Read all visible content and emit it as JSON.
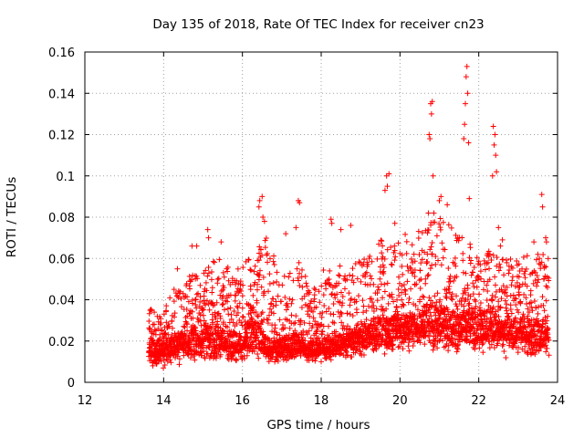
{
  "chart_data": {
    "type": "scatter",
    "title": "Day 135 of 2018, Rate Of TEC Index for receiver cn23",
    "xlabel": "GPS time / hours",
    "ylabel": "ROTI / TECUs",
    "xlim": [
      12,
      24
    ],
    "ylim": [
      0,
      0.16
    ],
    "xticks": [
      "12",
      "14",
      "16",
      "18",
      "20",
      "22",
      "24"
    ],
    "yticks": [
      "0",
      "0.02",
      "0.04",
      "0.06",
      "0.08",
      "0.1",
      "0.12",
      "0.14",
      "0.16"
    ],
    "grid": true,
    "marker": "+",
    "marker_color": "#ff0000",
    "series": [
      {
        "name": "ROTI",
        "x_range": [
          13.62,
          23.78
        ],
        "envelope": [
          [
            13.6,
            0.005,
            0.018,
            0.036
          ],
          [
            14.0,
            0.006,
            0.018,
            0.035
          ],
          [
            14.4,
            0.008,
            0.022,
            0.05
          ],
          [
            14.8,
            0.008,
            0.025,
            0.053
          ],
          [
            15.2,
            0.008,
            0.025,
            0.062
          ],
          [
            15.6,
            0.007,
            0.022,
            0.06
          ],
          [
            16.0,
            0.008,
            0.022,
            0.055
          ],
          [
            16.3,
            0.008,
            0.03,
            0.075
          ],
          [
            16.6,
            0.007,
            0.02,
            0.07
          ],
          [
            17.0,
            0.008,
            0.02,
            0.055
          ],
          [
            17.4,
            0.008,
            0.022,
            0.06
          ],
          [
            17.8,
            0.008,
            0.018,
            0.045
          ],
          [
            18.2,
            0.01,
            0.02,
            0.06
          ],
          [
            18.6,
            0.01,
            0.022,
            0.055
          ],
          [
            19.0,
            0.01,
            0.025,
            0.06
          ],
          [
            19.4,
            0.012,
            0.028,
            0.065
          ],
          [
            19.8,
            0.012,
            0.03,
            0.08
          ],
          [
            20.2,
            0.013,
            0.03,
            0.07
          ],
          [
            20.6,
            0.012,
            0.032,
            0.075
          ],
          [
            21.0,
            0.012,
            0.035,
            0.08
          ],
          [
            21.4,
            0.012,
            0.03,
            0.075
          ],
          [
            21.8,
            0.012,
            0.033,
            0.07
          ],
          [
            22.2,
            0.012,
            0.032,
            0.065
          ],
          [
            22.6,
            0.012,
            0.028,
            0.06
          ],
          [
            23.0,
            0.011,
            0.028,
            0.06
          ],
          [
            23.4,
            0.01,
            0.028,
            0.065
          ],
          [
            23.8,
            0.01,
            0.026,
            0.06
          ]
        ],
        "outliers": [
          [
            14.35,
            0.055
          ],
          [
            14.72,
            0.066
          ],
          [
            14.84,
            0.066
          ],
          [
            15.12,
            0.074
          ],
          [
            15.14,
            0.07
          ],
          [
            15.46,
            0.068
          ],
          [
            16.42,
            0.085
          ],
          [
            16.44,
            0.088
          ],
          [
            16.5,
            0.09
          ],
          [
            16.52,
            0.08
          ],
          [
            16.56,
            0.078
          ],
          [
            17.1,
            0.072
          ],
          [
            17.36,
            0.075
          ],
          [
            17.42,
            0.088
          ],
          [
            17.45,
            0.087
          ],
          [
            18.25,
            0.079
          ],
          [
            18.27,
            0.077
          ],
          [
            18.5,
            0.074
          ],
          [
            18.75,
            0.076
          ],
          [
            19.62,
            0.093
          ],
          [
            19.66,
            0.1
          ],
          [
            19.68,
            0.095
          ],
          [
            19.72,
            0.101
          ],
          [
            20.72,
            0.082
          ],
          [
            20.74,
            0.12
          ],
          [
            20.76,
            0.118
          ],
          [
            20.78,
            0.135
          ],
          [
            20.8,
            0.13
          ],
          [
            20.82,
            0.136
          ],
          [
            20.84,
            0.1
          ],
          [
            20.86,
            0.082
          ],
          [
            21.0,
            0.088
          ],
          [
            21.04,
            0.09
          ],
          [
            21.2,
            0.086
          ],
          [
            21.62,
            0.118
          ],
          [
            21.64,
            0.125
          ],
          [
            21.66,
            0.135
          ],
          [
            21.68,
            0.148
          ],
          [
            21.7,
            0.153
          ],
          [
            21.72,
            0.14
          ],
          [
            21.74,
            0.116
          ],
          [
            21.76,
            0.089
          ],
          [
            22.35,
            0.1
          ],
          [
            22.37,
            0.124
          ],
          [
            22.39,
            0.115
          ],
          [
            22.41,
            0.12
          ],
          [
            22.43,
            0.11
          ],
          [
            22.45,
            0.102
          ],
          [
            22.5,
            0.075
          ],
          [
            22.55,
            0.066
          ],
          [
            22.6,
            0.069
          ],
          [
            23.4,
            0.068
          ],
          [
            23.5,
            0.062
          ],
          [
            23.6,
            0.091
          ],
          [
            23.62,
            0.085
          ],
          [
            23.7,
            0.07
          ],
          [
            23.72,
            0.068
          ]
        ]
      }
    ]
  }
}
